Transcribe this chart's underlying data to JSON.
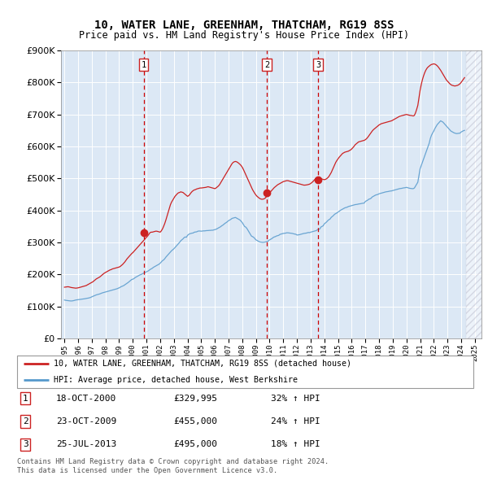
{
  "title": "10, WATER LANE, GREENHAM, THATCHAM, RG19 8SS",
  "subtitle": "Price paid vs. HM Land Registry's House Price Index (HPI)",
  "ylim": [
    0,
    900000
  ],
  "yticks": [
    0,
    100000,
    200000,
    300000,
    400000,
    500000,
    600000,
    700000,
    800000,
    900000
  ],
  "xlim_start": 1994.75,
  "xlim_end": 2025.5,
  "background_color": "#ffffff",
  "plot_bg_color": "#dce8f5",
  "grid_color": "#ffffff",
  "hpi_line_color": "#5599cc",
  "price_line_color": "#cc2222",
  "dashed_line_color": "#cc0000",
  "legend_label_price": "10, WATER LANE, GREENHAM, THATCHAM, RG19 8SS (detached house)",
  "legend_label_hpi": "HPI: Average price, detached house, West Berkshire",
  "transactions": [
    {
      "num": 1,
      "date": "18-OCT-2000",
      "price": 329995,
      "pct": "32%",
      "x_year": 2000.8
    },
    {
      "num": 2,
      "date": "23-OCT-2009",
      "price": 455000,
      "pct": "24%",
      "x_year": 2009.8
    },
    {
      "num": 3,
      "date": "25-JUL-2013",
      "price": 495000,
      "pct": "18%",
      "x_year": 2013.55
    }
  ],
  "footnote1": "Contains HM Land Registry data © Crown copyright and database right 2024.",
  "footnote2": "This data is licensed under the Open Government Licence v3.0.",
  "hpi_monthly_x": [
    1995.0,
    1995.083,
    1995.167,
    1995.25,
    1995.333,
    1995.417,
    1995.5,
    1995.583,
    1995.667,
    1995.75,
    1995.833,
    1995.917,
    1996.0,
    1996.083,
    1996.167,
    1996.25,
    1996.333,
    1996.417,
    1996.5,
    1996.583,
    1996.667,
    1996.75,
    1996.833,
    1996.917,
    1997.0,
    1997.083,
    1997.167,
    1997.25,
    1997.333,
    1997.417,
    1997.5,
    1997.583,
    1997.667,
    1997.75,
    1997.833,
    1997.917,
    1998.0,
    1998.083,
    1998.167,
    1998.25,
    1998.333,
    1998.417,
    1998.5,
    1998.583,
    1998.667,
    1998.75,
    1998.833,
    1998.917,
    1999.0,
    1999.083,
    1999.167,
    1999.25,
    1999.333,
    1999.417,
    1999.5,
    1999.583,
    1999.667,
    1999.75,
    1999.833,
    1999.917,
    2000.0,
    2000.083,
    2000.167,
    2000.25,
    2000.333,
    2000.417,
    2000.5,
    2000.583,
    2000.667,
    2000.75,
    2000.833,
    2000.917,
    2001.0,
    2001.083,
    2001.167,
    2001.25,
    2001.333,
    2001.417,
    2001.5,
    2001.583,
    2001.667,
    2001.75,
    2001.833,
    2001.917,
    2002.0,
    2002.083,
    2002.167,
    2002.25,
    2002.333,
    2002.417,
    2002.5,
    2002.583,
    2002.667,
    2002.75,
    2002.833,
    2002.917,
    2003.0,
    2003.083,
    2003.167,
    2003.25,
    2003.333,
    2003.417,
    2003.5,
    2003.583,
    2003.667,
    2003.75,
    2003.833,
    2003.917,
    2004.0,
    2004.083,
    2004.167,
    2004.25,
    2004.333,
    2004.417,
    2004.5,
    2004.583,
    2004.667,
    2004.75,
    2004.833,
    2004.917,
    2005.0,
    2005.083,
    2005.167,
    2005.25,
    2005.333,
    2005.417,
    2005.5,
    2005.583,
    2005.667,
    2005.75,
    2005.833,
    2005.917,
    2006.0,
    2006.083,
    2006.167,
    2006.25,
    2006.333,
    2006.417,
    2006.5,
    2006.583,
    2006.667,
    2006.75,
    2006.833,
    2006.917,
    2007.0,
    2007.083,
    2007.167,
    2007.25,
    2007.333,
    2007.417,
    2007.5,
    2007.583,
    2007.667,
    2007.75,
    2007.833,
    2007.917,
    2008.0,
    2008.083,
    2008.167,
    2008.25,
    2008.333,
    2008.417,
    2008.5,
    2008.583,
    2008.667,
    2008.75,
    2008.833,
    2008.917,
    2009.0,
    2009.083,
    2009.167,
    2009.25,
    2009.333,
    2009.417,
    2009.5,
    2009.583,
    2009.667,
    2009.75,
    2009.833,
    2009.917,
    2010.0,
    2010.083,
    2010.167,
    2010.25,
    2010.333,
    2010.417,
    2010.5,
    2010.583,
    2010.667,
    2010.75,
    2010.833,
    2010.917,
    2011.0,
    2011.083,
    2011.167,
    2011.25,
    2011.333,
    2011.417,
    2011.5,
    2011.583,
    2011.667,
    2011.75,
    2011.833,
    2011.917,
    2012.0,
    2012.083,
    2012.167,
    2012.25,
    2012.333,
    2012.417,
    2012.5,
    2012.583,
    2012.667,
    2012.75,
    2012.833,
    2012.917,
    2013.0,
    2013.083,
    2013.167,
    2013.25,
    2013.333,
    2013.417,
    2013.5,
    2013.583,
    2013.667,
    2013.75,
    2013.833,
    2013.917,
    2014.0,
    2014.083,
    2014.167,
    2014.25,
    2014.333,
    2014.417,
    2014.5,
    2014.583,
    2014.667,
    2014.75,
    2014.833,
    2014.917,
    2015.0,
    2015.083,
    2015.167,
    2015.25,
    2015.333,
    2015.417,
    2015.5,
    2015.583,
    2015.667,
    2015.75,
    2015.833,
    2015.917,
    2016.0,
    2016.083,
    2016.167,
    2016.25,
    2016.333,
    2016.417,
    2016.5,
    2016.583,
    2016.667,
    2016.75,
    2016.833,
    2016.917,
    2017.0,
    2017.083,
    2017.167,
    2017.25,
    2017.333,
    2017.417,
    2017.5,
    2017.583,
    2017.667,
    2017.75,
    2017.833,
    2017.917,
    2018.0,
    2018.083,
    2018.167,
    2018.25,
    2018.333,
    2018.417,
    2018.5,
    2018.583,
    2018.667,
    2018.75,
    2018.833,
    2018.917,
    2019.0,
    2019.083,
    2019.167,
    2019.25,
    2019.333,
    2019.417,
    2019.5,
    2019.583,
    2019.667,
    2019.75,
    2019.833,
    2019.917,
    2020.0,
    2020.083,
    2020.167,
    2020.25,
    2020.333,
    2020.417,
    2020.5,
    2020.583,
    2020.667,
    2020.75,
    2020.833,
    2020.917,
    2021.0,
    2021.083,
    2021.167,
    2021.25,
    2021.333,
    2021.417,
    2021.5,
    2021.583,
    2021.667,
    2021.75,
    2021.833,
    2021.917,
    2022.0,
    2022.083,
    2022.167,
    2022.25,
    2022.333,
    2022.417,
    2022.5,
    2022.583,
    2022.667,
    2022.75,
    2022.833,
    2022.917,
    2023.0,
    2023.083,
    2023.167,
    2023.25,
    2023.333,
    2023.417,
    2023.5,
    2023.583,
    2023.667,
    2023.75,
    2023.833,
    2023.917,
    2024.0,
    2024.083,
    2024.167,
    2024.25
  ],
  "hpi_monthly_y": [
    120000,
    119000,
    118500,
    118000,
    117500,
    117200,
    117000,
    117300,
    118000,
    119000,
    120000,
    120500,
    121000,
    121500,
    122000,
    122500,
    123000,
    123500,
    124000,
    124800,
    125500,
    126000,
    127000,
    128000,
    130000,
    131500,
    133000,
    134500,
    136000,
    137000,
    138000,
    139000,
    140500,
    142000,
    143000,
    144000,
    145000,
    146000,
    147000,
    148000,
    149000,
    150000,
    151000,
    152000,
    153000,
    154000,
    155000,
    156500,
    158000,
    160000,
    162000,
    163500,
    165000,
    167500,
    170000,
    172500,
    175000,
    178000,
    181000,
    184000,
    185000,
    187000,
    190000,
    192000,
    194000,
    196000,
    198000,
    199500,
    201000,
    203000,
    205000,
    206500,
    208000,
    210000,
    212000,
    215000,
    217000,
    219000,
    222000,
    224000,
    226000,
    228000,
    230000,
    232000,
    235000,
    239000,
    243000,
    245000,
    249000,
    254000,
    258000,
    262000,
    266000,
    270000,
    274000,
    277000,
    280000,
    284000,
    288000,
    292000,
    296000,
    300000,
    305000,
    308000,
    311000,
    315000,
    317000,
    316000,
    322000,
    325000,
    327000,
    328000,
    329000,
    329500,
    332000,
    332500,
    333000,
    335000,
    335500,
    335500,
    335000,
    335500,
    336000,
    336000,
    336500,
    337000,
    337000,
    337500,
    337500,
    338000,
    338000,
    339000,
    340000,
    341000,
    343000,
    345000,
    347000,
    349000,
    352000,
    354000,
    357000,
    360000,
    362000,
    365000,
    368000,
    370000,
    372000,
    375000,
    376000,
    377000,
    378000,
    376000,
    374000,
    372000,
    370000,
    366000,
    362000,
    356000,
    350000,
    348000,
    344000,
    338000,
    332000,
    326000,
    320000,
    318000,
    316000,
    312000,
    308000,
    306000,
    304000,
    302000,
    301000,
    300500,
    300000,
    300500,
    301000,
    302000,
    303000,
    305000,
    308000,
    310000,
    312000,
    315000,
    317000,
    318000,
    320000,
    321000,
    322000,
    325000,
    326000,
    327000,
    328000,
    328500,
    329000,
    330000,
    330000,
    329500,
    329000,
    328500,
    328000,
    327000,
    326000,
    325500,
    323000,
    323500,
    324000,
    325000,
    326000,
    327000,
    328000,
    328500,
    329000,
    330000,
    331000,
    330500,
    332000,
    333000,
    334000,
    335000,
    336000,
    337000,
    340000,
    341000,
    342000,
    348000,
    350000,
    352000,
    358000,
    361000,
    364000,
    368000,
    371000,
    373000,
    378000,
    381000,
    384000,
    388000,
    390000,
    392000,
    395000,
    397000,
    400000,
    402000,
    404000,
    406000,
    408000,
    409000,
    410000,
    412000,
    413000,
    414000,
    415000,
    416000,
    417000,
    418000,
    418500,
    419000,
    420000,
    420500,
    421000,
    422000,
    422500,
    423000,
    428000,
    430000,
    432000,
    435000,
    436000,
    438000,
    442000,
    444000,
    446000,
    448000,
    449000,
    450000,
    452000,
    453000,
    454000,
    455000,
    456000,
    457000,
    458000,
    458500,
    459000,
    460000,
    460500,
    461000,
    462000,
    463000,
    464000,
    465000,
    466000,
    467000,
    468000,
    468500,
    469000,
    470000,
    470500,
    471000,
    472000,
    471000,
    470000,
    469000,
    468500,
    468000,
    468000,
    470000,
    476000,
    482000,
    488000,
    510000,
    530000,
    540000,
    550000,
    560000,
    570000,
    580000,
    590000,
    600000,
    610000,
    625000,
    635000,
    642000,
    648000,
    656000,
    662000,
    668000,
    672000,
    676000,
    680000,
    678000,
    676000,
    672000,
    668000,
    664000,
    660000,
    656000,
    652000,
    648000,
    646000,
    644000,
    642000,
    641000,
    640000,
    640500,
    641000,
    641500,
    645000,
    647000,
    649000,
    650000
  ],
  "price_monthly_x": [
    1995.0,
    1995.083,
    1995.167,
    1995.25,
    1995.333,
    1995.417,
    1995.5,
    1995.583,
    1995.667,
    1995.75,
    1995.833,
    1995.917,
    1996.0,
    1996.083,
    1996.167,
    1996.25,
    1996.333,
    1996.417,
    1996.5,
    1996.583,
    1996.667,
    1996.75,
    1996.833,
    1996.917,
    1997.0,
    1997.083,
    1997.167,
    1997.25,
    1997.333,
    1997.417,
    1997.5,
    1997.583,
    1997.667,
    1997.75,
    1997.833,
    1997.917,
    1998.0,
    1998.083,
    1998.167,
    1998.25,
    1998.333,
    1998.417,
    1998.5,
    1998.583,
    1998.667,
    1998.75,
    1998.833,
    1998.917,
    1999.0,
    1999.083,
    1999.167,
    1999.25,
    1999.333,
    1999.417,
    1999.5,
    1999.583,
    1999.667,
    1999.75,
    1999.833,
    1999.917,
    2000.0,
    2000.083,
    2000.167,
    2000.25,
    2000.333,
    2000.417,
    2000.5,
    2000.583,
    2000.667,
    2000.75,
    2000.833,
    2000.917,
    2001.0,
    2001.083,
    2001.167,
    2001.25,
    2001.333,
    2001.417,
    2001.5,
    2001.583,
    2001.667,
    2001.75,
    2001.833,
    2001.917,
    2002.0,
    2002.083,
    2002.167,
    2002.25,
    2002.333,
    2002.417,
    2002.5,
    2002.583,
    2002.667,
    2002.75,
    2002.833,
    2002.917,
    2003.0,
    2003.083,
    2003.167,
    2003.25,
    2003.333,
    2003.417,
    2003.5,
    2003.583,
    2003.667,
    2003.75,
    2003.833,
    2003.917,
    2004.0,
    2004.083,
    2004.167,
    2004.25,
    2004.333,
    2004.417,
    2004.5,
    2004.583,
    2004.667,
    2004.75,
    2004.833,
    2004.917,
    2005.0,
    2005.083,
    2005.167,
    2005.25,
    2005.333,
    2005.417,
    2005.5,
    2005.583,
    2005.667,
    2005.75,
    2005.833,
    2005.917,
    2006.0,
    2006.083,
    2006.167,
    2006.25,
    2006.333,
    2006.417,
    2006.5,
    2006.583,
    2006.667,
    2006.75,
    2006.833,
    2006.917,
    2007.0,
    2007.083,
    2007.167,
    2007.25,
    2007.333,
    2007.417,
    2007.5,
    2007.583,
    2007.667,
    2007.75,
    2007.833,
    2007.917,
    2008.0,
    2008.083,
    2008.167,
    2008.25,
    2008.333,
    2008.417,
    2008.5,
    2008.583,
    2008.667,
    2008.75,
    2008.833,
    2008.917,
    2009.0,
    2009.083,
    2009.167,
    2009.25,
    2009.333,
    2009.417,
    2009.5,
    2009.583,
    2009.667,
    2009.75,
    2009.833,
    2009.917,
    2010.0,
    2010.083,
    2010.167,
    2010.25,
    2010.333,
    2010.417,
    2010.5,
    2010.583,
    2010.667,
    2010.75,
    2010.833,
    2010.917,
    2011.0,
    2011.083,
    2011.167,
    2011.25,
    2011.333,
    2011.417,
    2011.5,
    2011.583,
    2011.667,
    2011.75,
    2011.833,
    2011.917,
    2012.0,
    2012.083,
    2012.167,
    2012.25,
    2012.333,
    2012.417,
    2012.5,
    2012.583,
    2012.667,
    2012.75,
    2012.833,
    2012.917,
    2013.0,
    2013.083,
    2013.167,
    2013.25,
    2013.333,
    2013.417,
    2013.5,
    2013.583,
    2013.667,
    2013.75,
    2013.833,
    2013.917,
    2014.0,
    2014.083,
    2014.167,
    2014.25,
    2014.333,
    2014.417,
    2014.5,
    2014.583,
    2014.667,
    2014.75,
    2014.833,
    2014.917,
    2015.0,
    2015.083,
    2015.167,
    2015.25,
    2015.333,
    2015.417,
    2015.5,
    2015.583,
    2015.667,
    2015.75,
    2015.833,
    2015.917,
    2016.0,
    2016.083,
    2016.167,
    2016.25,
    2016.333,
    2016.417,
    2016.5,
    2016.583,
    2016.667,
    2016.75,
    2016.833,
    2016.917,
    2017.0,
    2017.083,
    2017.167,
    2017.25,
    2017.333,
    2017.417,
    2017.5,
    2017.583,
    2017.667,
    2017.75,
    2017.833,
    2017.917,
    2018.0,
    2018.083,
    2018.167,
    2018.25,
    2018.333,
    2018.417,
    2018.5,
    2018.583,
    2018.667,
    2018.75,
    2018.833,
    2018.917,
    2019.0,
    2019.083,
    2019.167,
    2019.25,
    2019.333,
    2019.417,
    2019.5,
    2019.583,
    2019.667,
    2019.75,
    2019.833,
    2019.917,
    2020.0,
    2020.083,
    2020.167,
    2020.25,
    2020.333,
    2020.417,
    2020.5,
    2020.583,
    2020.667,
    2020.75,
    2020.833,
    2020.917,
    2021.0,
    2021.083,
    2021.167,
    2021.25,
    2021.333,
    2021.417,
    2021.5,
    2021.583,
    2021.667,
    2021.75,
    2021.833,
    2021.917,
    2022.0,
    2022.083,
    2022.167,
    2022.25,
    2022.333,
    2022.417,
    2022.5,
    2022.583,
    2022.667,
    2022.75,
    2022.833,
    2022.917,
    2023.0,
    2023.083,
    2023.167,
    2023.25,
    2023.333,
    2023.417,
    2023.5,
    2023.583,
    2023.667,
    2023.75,
    2023.833,
    2023.917,
    2024.0,
    2024.083,
    2024.167,
    2024.25
  ],
  "price_monthly_y": [
    160000,
    160500,
    161000,
    161500,
    161000,
    160000,
    159000,
    158500,
    158000,
    157500,
    157000,
    157500,
    158000,
    159000,
    160000,
    161000,
    162000,
    163000,
    164000,
    165000,
    167000,
    169000,
    171000,
    173000,
    175000,
    177000,
    180000,
    183000,
    186000,
    188000,
    190000,
    192000,
    195000,
    198000,
    201000,
    204000,
    206000,
    208000,
    210000,
    212000,
    214000,
    215000,
    217000,
    218000,
    219000,
    220000,
    221000,
    222000,
    223000,
    225000,
    228000,
    231000,
    235000,
    239000,
    244000,
    249000,
    253000,
    257000,
    261000,
    265000,
    268000,
    272000,
    276000,
    280000,
    284000,
    288000,
    292000,
    296000,
    300000,
    304000,
    308000,
    312000,
    316000,
    320000,
    325000,
    330000,
    332000,
    332000,
    333000,
    334000,
    335000,
    335000,
    334000,
    333000,
    332000,
    336000,
    342000,
    350000,
    359000,
    370000,
    382000,
    394000,
    406000,
    418000,
    426000,
    432000,
    438000,
    444000,
    448000,
    452000,
    455000,
    456000,
    458000,
    457000,
    456000,
    453000,
    450000,
    447000,
    444000,
    446000,
    450000,
    455000,
    459000,
    462000,
    464000,
    465000,
    467000,
    468000,
    469000,
    470000,
    470000,
    470500,
    471000,
    471500,
    472000,
    473000,
    474000,
    473000,
    472000,
    471000,
    470000,
    469000,
    468000,
    470000,
    473000,
    476000,
    480000,
    486000,
    492000,
    498000,
    504000,
    510000,
    516000,
    522000,
    528000,
    534000,
    540000,
    546000,
    550000,
    552000,
    553000,
    552000,
    550000,
    547000,
    544000,
    540000,
    535000,
    528000,
    520000,
    512000,
    504000,
    496000,
    488000,
    480000,
    472000,
    465000,
    459000,
    453000,
    448000,
    444000,
    441000,
    438000,
    436000,
    435000,
    435000,
    436000,
    438000,
    442000,
    446000,
    450000,
    455000,
    459000,
    463000,
    467000,
    471000,
    474000,
    477000,
    480000,
    482000,
    484000,
    486000,
    488000,
    490000,
    491000,
    492000,
    493000,
    493000,
    492000,
    491000,
    490000,
    489000,
    488000,
    487000,
    486000,
    485000,
    484000,
    483000,
    482000,
    481000,
    480000,
    479000,
    479000,
    479500,
    480000,
    481000,
    482000,
    484000,
    487000,
    490000,
    494000,
    498000,
    500000,
    502000,
    501000,
    500000,
    499000,
    498000,
    497000,
    496000,
    497000,
    499000,
    502000,
    506000,
    512000,
    518000,
    526000,
    534000,
    542000,
    550000,
    556000,
    561000,
    566000,
    570000,
    574000,
    578000,
    580000,
    582000,
    583000,
    584000,
    585000,
    587000,
    589000,
    592000,
    596000,
    600000,
    605000,
    608000,
    611000,
    614000,
    615000,
    616000,
    617000,
    618000,
    619000,
    621000,
    624000,
    628000,
    633000,
    638000,
    643000,
    648000,
    652000,
    655000,
    658000,
    661000,
    664000,
    667000,
    669000,
    671000,
    672000,
    673000,
    674000,
    675000,
    676000,
    677000,
    678000,
    679000,
    680000,
    682000,
    684000,
    686000,
    688000,
    690000,
    692000,
    694000,
    695000,
    696000,
    697000,
    698000,
    699000,
    700000,
    699000,
    698000,
    697000,
    696500,
    696000,
    695000,
    697000,
    705000,
    716000,
    728000,
    752000,
    775000,
    793000,
    808000,
    820000,
    830000,
    838000,
    844000,
    848000,
    851000,
    854000,
    856000,
    857000,
    858000,
    857000,
    855000,
    852000,
    848000,
    843000,
    838000,
    832000,
    826000,
    820000,
    814000,
    808000,
    804000,
    800000,
    796000,
    793000,
    791000,
    790000,
    789000,
    789000,
    790000,
    791000,
    793000,
    796000,
    800000,
    805000,
    810000,
    815000
  ]
}
